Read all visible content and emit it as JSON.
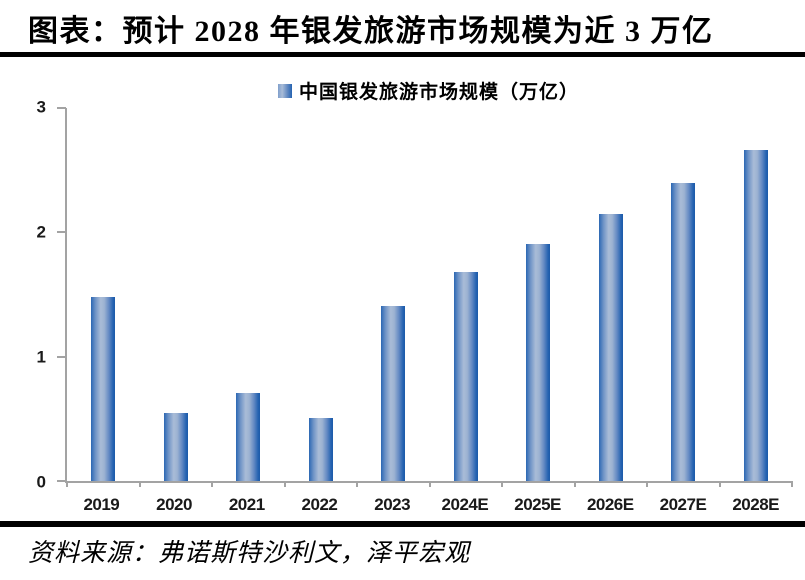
{
  "header": {
    "title": "图表：预计 2028 年银发旅游市场规模为近 3 万亿"
  },
  "footer": {
    "source": "资料来源：弗诺斯特沙利文，泽平宏观"
  },
  "chart_data": {
    "type": "bar",
    "title": "图表：预计 2028 年银发旅游市场规模为近 3 万亿",
    "legend": "中国银发旅游市场规模（万亿）",
    "legend_position": "top-center",
    "categories": [
      "2019",
      "2020",
      "2021",
      "2022",
      "2023",
      "2024E",
      "2025E",
      "2026E",
      "2027E",
      "2028E"
    ],
    "values": [
      1.48,
      0.55,
      0.71,
      0.51,
      1.41,
      1.68,
      1.91,
      2.15,
      2.4,
      2.66
    ],
    "unit": "万亿",
    "xlabel": "",
    "ylabel": "",
    "ylim": [
      0,
      3
    ],
    "yticks": [
      "0",
      "1",
      "2",
      "3"
    ],
    "grid": false,
    "colors": {
      "bar_edge": "#2465b2",
      "bar_light": "#abbed8",
      "axis": "#a3a3a3",
      "label": "#1a1a1a",
      "rule": "#000000"
    }
  }
}
